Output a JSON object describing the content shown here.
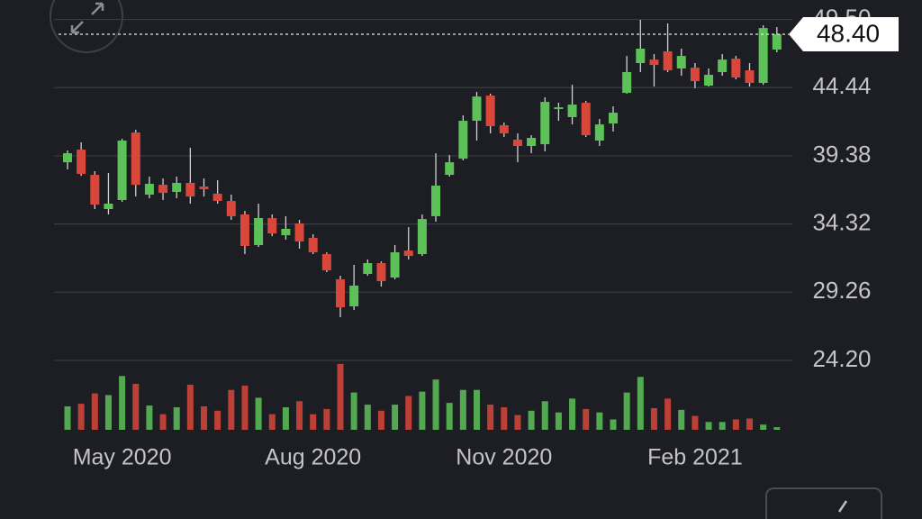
{
  "chart_data": {
    "type": "candlestick",
    "categories": [
      null,
      null,
      null,
      null,
      "May 2020",
      null,
      null,
      null,
      null,
      null,
      null,
      null,
      null,
      null,
      null,
      null,
      null,
      null,
      "Aug 2020",
      null,
      null,
      null,
      null,
      null,
      null,
      null,
      null,
      null,
      null,
      null,
      null,
      null,
      "Nov 2020",
      null,
      null,
      null,
      null,
      null,
      null,
      null,
      null,
      null,
      null,
      null,
      null,
      null,
      "Feb 2021",
      null,
      null,
      null,
      null,
      null,
      null
    ],
    "open": [
      38.9,
      39.84,
      37.97,
      35.43,
      36.1,
      41.11,
      36.5,
      37.23,
      36.7,
      37.37,
      37.1,
      36.57,
      36.03,
      35.03,
      32.76,
      34.76,
      33.49,
      34.36,
      33.29,
      32.09,
      30.22,
      28.21,
      30.62,
      31.42,
      30.35,
      32.35,
      32.09,
      34.9,
      37.97,
      39.17,
      41.98,
      43.85,
      41.65,
      40.58,
      40.11,
      40.24,
      42.85,
      42.25,
      43.32,
      40.51,
      41.78,
      44.05,
      46.26,
      46.52,
      47.13,
      45.86,
      45.92,
      44.59,
      45.59,
      46.59,
      45.72,
      44.79,
      47.26
    ],
    "high": [
      39.77,
      40.38,
      38.24,
      38.1,
      40.64,
      41.31,
      37.84,
      37.7,
      37.84,
      39.97,
      37.7,
      37.57,
      36.5,
      35.3,
      35.83,
      35.03,
      34.9,
      34.63,
      33.56,
      32.22,
      30.48,
      31.29,
      31.69,
      31.55,
      32.76,
      34.09,
      35.03,
      39.57,
      39.44,
      42.38,
      44.12,
      43.99,
      41.85,
      41.04,
      40.91,
      43.72,
      43.32,
      44.65,
      43.45,
      42.11,
      43.05,
      46.79,
      49.47,
      46.93,
      49.2,
      47.33,
      46.26,
      45.86,
      46.93,
      46.79,
      46.26,
      49.06,
      48.93
    ],
    "low": [
      38.37,
      37.9,
      35.43,
      35.03,
      35.96,
      36.36,
      36.23,
      36.1,
      36.23,
      35.83,
      36.36,
      35.83,
      34.63,
      32.09,
      32.62,
      33.42,
      33.16,
      32.49,
      32.09,
      30.75,
      27.41,
      27.94,
      30.48,
      29.68,
      30.22,
      31.69,
      31.95,
      34.49,
      37.84,
      39.04,
      40.51,
      41.04,
      40.78,
      38.9,
      39.57,
      39.71,
      41.98,
      41.71,
      40.78,
      40.11,
      41.18,
      43.99,
      45.59,
      44.52,
      45.59,
      45.32,
      44.39,
      44.52,
      45.32,
      45.05,
      44.52,
      44.65,
      47.06
    ],
    "close": [
      39.57,
      38.04,
      35.76,
      35.83,
      40.51,
      37.23,
      37.3,
      36.63,
      37.37,
      36.36,
      36.9,
      36.03,
      34.9,
      32.69,
      34.76,
      33.62,
      33.96,
      33.02,
      32.22,
      30.88,
      28.14,
      29.75,
      31.42,
      30.08,
      32.22,
      31.95,
      34.69,
      37.17,
      38.9,
      41.98,
      43.78,
      41.58,
      41.04,
      40.11,
      40.71,
      43.38,
      42.98,
      43.18,
      40.91,
      41.71,
      42.58,
      45.59,
      47.33,
      46.12,
      45.72,
      46.79,
      44.92,
      45.39,
      46.52,
      45.19,
      44.79,
      48.86,
      48.4
    ],
    "volume": [
      27,
      30,
      42,
      40,
      62,
      53,
      28,
      18,
      26,
      52,
      27,
      22,
      46,
      51,
      37,
      18,
      26,
      33,
      18,
      24,
      76,
      43,
      29,
      22,
      29,
      39,
      44,
      58,
      31,
      46,
      46,
      29,
      26,
      17,
      22,
      33,
      20,
      36,
      24,
      20,
      12,
      43,
      61,
      25,
      36,
      23,
      16,
      9,
      9,
      12,
      13,
      6,
      3
    ],
    "up_color": "#5cc257",
    "down_color": "#d9463a",
    "ylim": [
      24.2,
      50.94
    ],
    "yticks": [
      {
        "value": 24.2,
        "label": "24.20"
      },
      29.26,
      34.32,
      39.38,
      44.44,
      {
        "value": 49.5,
        "label": "49.50"
      }
    ],
    "volume_lim": [
      0,
      80
    ],
    "last_price": {
      "value": 48.4,
      "label": "48.40"
    },
    "grid": true
  }
}
